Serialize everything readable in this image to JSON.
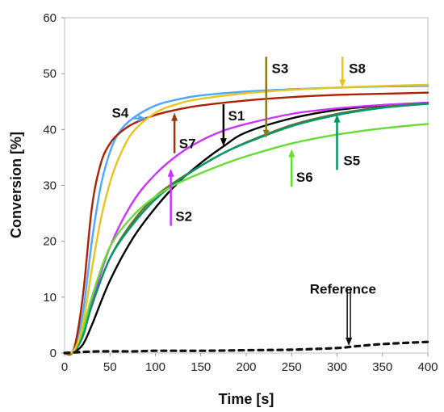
{
  "chart_data": {
    "type": "line",
    "xlabel": "Time [s]",
    "ylabel": "Conversion [%]",
    "xlim": [
      0,
      400
    ],
    "ylim": [
      0,
      60
    ],
    "xticks": [
      0,
      50,
      100,
      150,
      200,
      250,
      300,
      350,
      400
    ],
    "yticks": [
      0,
      10,
      20,
      30,
      40,
      50,
      60
    ],
    "grid": false,
    "legend": "none",
    "series": [
      {
        "name": "S1",
        "color": "#000000",
        "style": "solid",
        "x": [
          0,
          10,
          20,
          30,
          50,
          75,
          100,
          125,
          150,
          175,
          200,
          250,
          300,
          350,
          400
        ],
        "y": [
          0,
          0.2,
          1.5,
          5,
          13,
          20.5,
          26,
          30.5,
          34,
          37,
          39.5,
          42,
          43.5,
          44.3,
          44.8
        ]
      },
      {
        "name": "S2",
        "color": "#cc33ff",
        "style": "solid",
        "x": [
          0,
          10,
          20,
          30,
          50,
          75,
          100,
          125,
          150,
          175,
          200,
          250,
          300,
          350,
          400
        ],
        "y": [
          0,
          0.3,
          3,
          9,
          19,
          27,
          32,
          35.5,
          38,
          39.8,
          41,
          42.8,
          43.8,
          44.4,
          44.8
        ]
      },
      {
        "name": "S3",
        "color": "#6b6b2b",
        "style": "solid",
        "x": [
          0,
          10,
          20,
          30,
          50,
          75,
          100,
          125,
          150,
          175,
          200,
          250,
          300,
          350,
          400
        ],
        "y": [
          0,
          0.3,
          3,
          8.5,
          17,
          23.5,
          28,
          31,
          33.5,
          35.8,
          37.7,
          40.8,
          42.8,
          44,
          44.7
        ]
      },
      {
        "name": "S4",
        "color": "#4da6ff",
        "style": "solid",
        "x": [
          0,
          10,
          20,
          30,
          40,
          50,
          60,
          75,
          100,
          125,
          150,
          200,
          250,
          300,
          350,
          400
        ],
        "y": [
          0,
          0.5,
          7,
          20,
          30,
          36,
          39.5,
          42,
          44.3,
          45.4,
          46.1,
          46.8,
          47.2,
          47.5,
          47.7,
          47.8
        ]
      },
      {
        "name": "S5",
        "color": "#009966",
        "style": "solid",
        "x": [
          0,
          10,
          20,
          30,
          50,
          75,
          100,
          125,
          150,
          175,
          200,
          250,
          300,
          350,
          400
        ],
        "y": [
          0,
          0.3,
          3,
          8.5,
          17,
          23,
          27.5,
          30.8,
          33.5,
          35.8,
          37.6,
          40.6,
          42.6,
          43.9,
          44.6
        ]
      },
      {
        "name": "S6",
        "color": "#66dd33",
        "style": "solid",
        "x": [
          0,
          10,
          20,
          30,
          50,
          75,
          100,
          125,
          150,
          175,
          200,
          250,
          300,
          350,
          400
        ],
        "y": [
          0,
          0.4,
          4,
          10,
          19,
          24.5,
          28,
          30.4,
          32.2,
          33.8,
          35.2,
          37.5,
          39.1,
          40.2,
          41
        ]
      },
      {
        "name": "S7",
        "color": "#aa2200",
        "style": "solid",
        "x": [
          0,
          10,
          20,
          30,
          40,
          50,
          60,
          75,
          100,
          125,
          150,
          200,
          250,
          300,
          350,
          400
        ],
        "y": [
          0,
          0.6,
          10,
          26,
          34,
          37.5,
          39.3,
          41,
          42.6,
          43.6,
          44.3,
          45.2,
          45.8,
          46.2,
          46.4,
          46.6
        ]
      },
      {
        "name": "S8",
        "color": "#e8c51e",
        "style": "solid",
        "x": [
          0,
          10,
          20,
          30,
          40,
          50,
          60,
          75,
          100,
          125,
          150,
          200,
          250,
          300,
          350,
          400
        ],
        "y": [
          0,
          0.4,
          5,
          15,
          24,
          30.5,
          35,
          39.5,
          43,
          44.6,
          45.5,
          46.5,
          47.1,
          47.5,
          47.8,
          48
        ]
      },
      {
        "name": "Reference",
        "color": "#111111",
        "style": "dashed",
        "x": [
          0,
          20,
          40,
          60,
          80,
          100,
          150,
          200,
          250,
          300,
          320,
          350,
          400
        ],
        "y": [
          0,
          0.2,
          0.3,
          0.3,
          0.3,
          0.4,
          0.4,
          0.5,
          0.6,
          0.9,
          1.2,
          1.6,
          2.0
        ]
      }
    ],
    "callouts": [
      {
        "label": "S1",
        "color": "#000000",
        "target": [
          175,
          37
        ],
        "label_pos": [
          180,
          42.5
        ],
        "dir": "down"
      },
      {
        "label": "S2",
        "color": "#cc33ff",
        "target": [
          117,
          33
        ],
        "label_pos": [
          122,
          24.5
        ],
        "dir": "up"
      },
      {
        "label": "S3",
        "color": "#8b7a1e",
        "target": [
          222,
          38.5
        ],
        "label_pos": [
          228,
          51
        ],
        "dir": "down"
      },
      {
        "label": "S4",
        "color": "#4da6ff",
        "target": [
          90,
          42
        ],
        "label_pos": [
          52,
          43
        ],
        "dir": "right"
      },
      {
        "label": "S5",
        "color": "#009966",
        "target": [
          300,
          42.7
        ],
        "label_pos": [
          307,
          34.5
        ],
        "dir": "up"
      },
      {
        "label": "S6",
        "color": "#66dd33",
        "target": [
          250,
          36.5
        ],
        "label_pos": [
          255,
          31.5
        ],
        "dir": "up"
      },
      {
        "label": "S7",
        "color": "#993311",
        "target": [
          121,
          43
        ],
        "label_pos": [
          126,
          37.5
        ],
        "dir": "up"
      },
      {
        "label": "S8",
        "color": "#e8c51e",
        "target": [
          306,
          47.5
        ],
        "label_pos": [
          313,
          51
        ],
        "dir": "down"
      },
      {
        "label": "Reference",
        "color": "#111111",
        "target": [
          313,
          1.3
        ],
        "label_pos": [
          270,
          11.5
        ],
        "dir": "down"
      }
    ]
  }
}
